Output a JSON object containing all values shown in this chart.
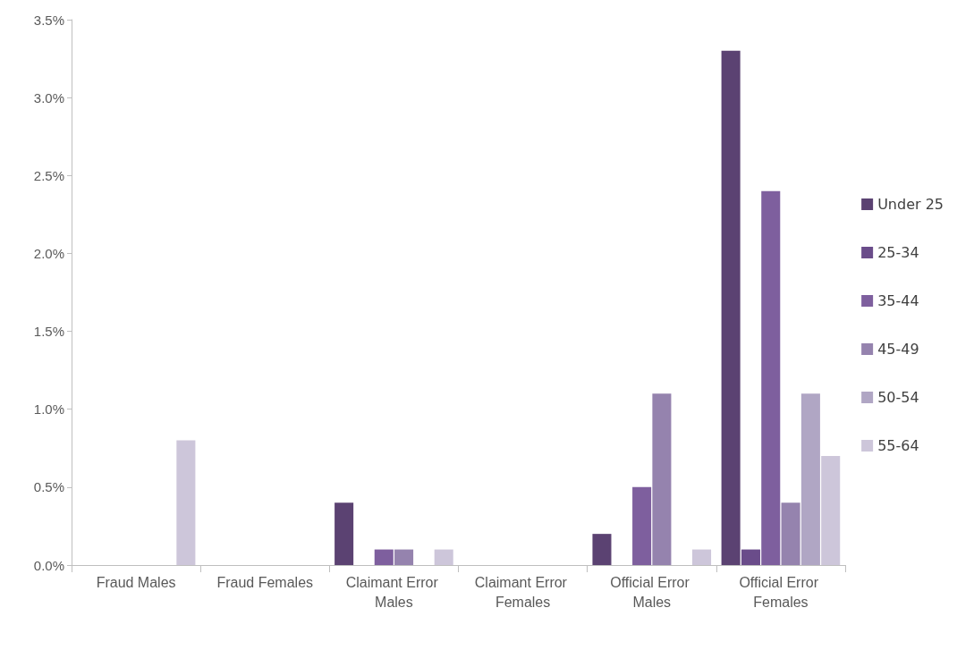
{
  "chart_data": {
    "type": "bar",
    "categories": [
      "Fraud Males",
      "Fraud Females",
      "Claimant Error Males",
      "Claimant Error Females",
      "Official Error Males",
      "Official Error Females"
    ],
    "series": [
      {
        "name": "Under 25",
        "color": "#5b4272",
        "values": [
          0,
          0,
          0.4,
          0,
          0.2,
          3.3
        ]
      },
      {
        "name": "25-34",
        "color": "#6a4c8a",
        "values": [
          0,
          0,
          0,
          0,
          0,
          0.1
        ]
      },
      {
        "name": "35-44",
        "color": "#7e5f9e",
        "values": [
          0,
          0,
          0.1,
          0,
          0.5,
          2.4
        ]
      },
      {
        "name": "45-49",
        "color": "#9583ae",
        "values": [
          0,
          0,
          0.1,
          0,
          1.1,
          0.4
        ]
      },
      {
        "name": "50-54",
        "color": "#b0a6c4",
        "values": [
          0,
          0,
          0,
          0,
          0,
          1.1
        ]
      },
      {
        "name": "55-64",
        "color": "#cdc6da",
        "values": [
          0.8,
          0,
          0.1,
          0,
          0.1,
          0.7
        ]
      }
    ],
    "ylim": [
      0,
      3.5
    ],
    "yticks": [
      {
        "value": 0,
        "label": "0.0%"
      },
      {
        "value": 0.5,
        "label": "0.5%"
      },
      {
        "value": 1,
        "label": "1.0%"
      },
      {
        "value": 1.5,
        "label": "1.5%"
      },
      {
        "value": 2,
        "label": "2.0%"
      },
      {
        "value": 2.5,
        "label": "2.5%"
      },
      {
        "value": 3,
        "label": "3.0%"
      },
      {
        "value": 3.5,
        "label": "3.5%"
      }
    ],
    "grid": false,
    "legend": "right"
  }
}
